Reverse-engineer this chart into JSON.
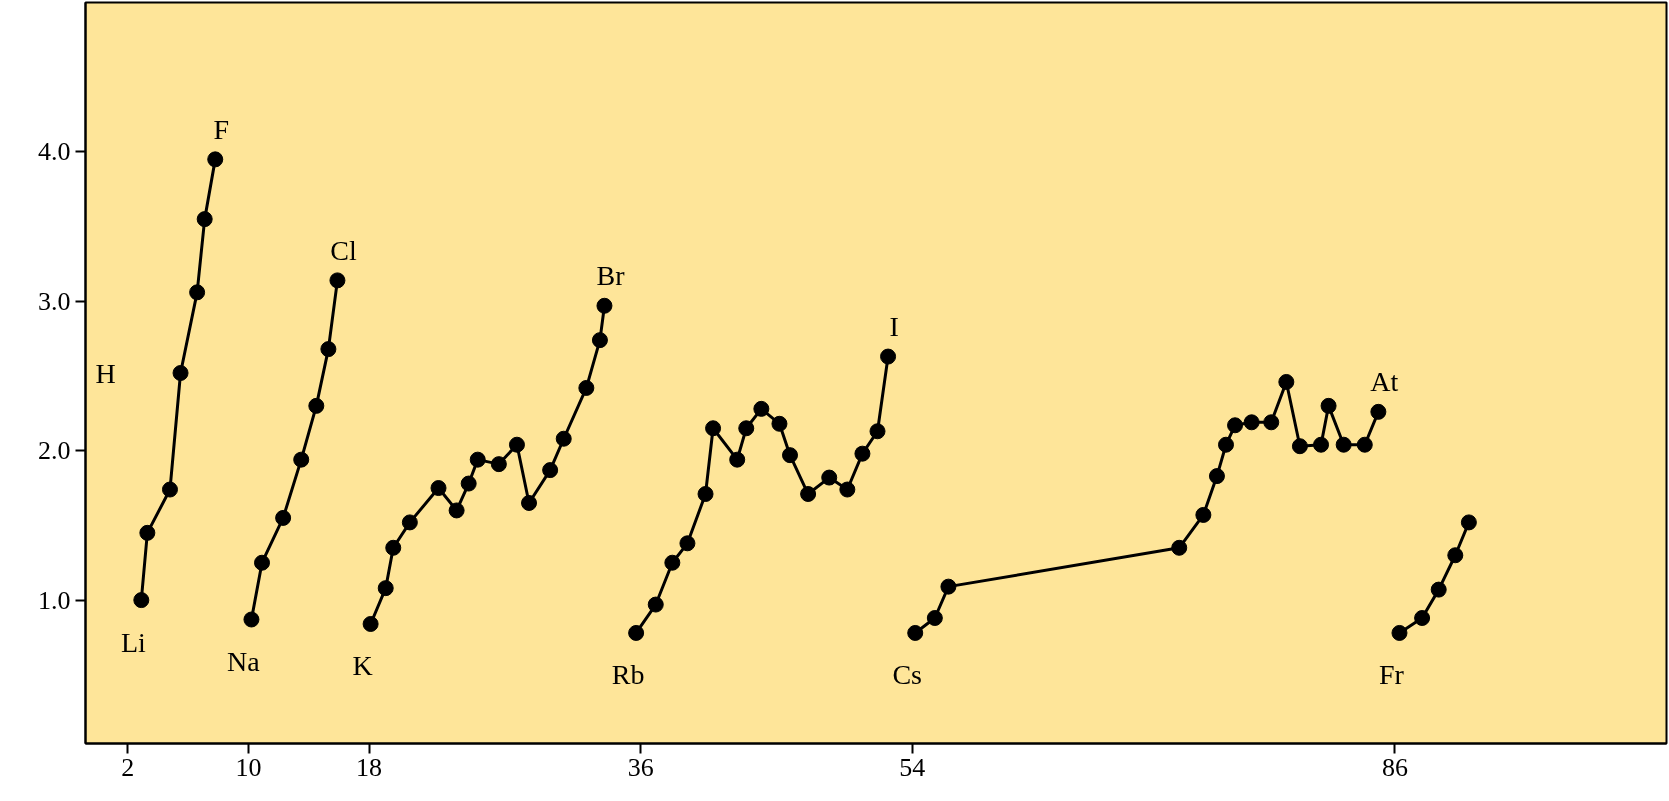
{
  "chart_data": {
    "type": "line",
    "marker": "circle",
    "line_style": "solid",
    "grid": false,
    "xlim": [
      -0.8,
      104
    ],
    "ylim": [
      0.04,
      5.0
    ],
    "xticks": [
      2,
      10,
      18,
      36,
      54,
      86
    ],
    "yticks": [
      {
        "value": 1,
        "label": "1.0"
      },
      {
        "value": 2,
        "label": "2.0"
      },
      {
        "value": 3,
        "label": "3.0"
      },
      {
        "value": 4,
        "label": "4.0"
      }
    ],
    "series": [
      {
        "color": "#000000",
        "x": [
          2.9,
          3.3,
          4.8,
          5.5,
          6.6,
          7.1,
          7.8
        ],
        "values": [
          1.0,
          1.45,
          1.74,
          2.52,
          3.06,
          3.55,
          3.95
        ]
      },
      {
        "color": "#000000",
        "x": [
          10.2,
          10.9,
          12.3,
          13.5,
          14.5,
          15.3,
          15.9
        ],
        "values": [
          0.87,
          1.25,
          1.55,
          1.94,
          2.3,
          2.68,
          3.14
        ]
      },
      {
        "color": "#000000",
        "x": [
          18.1,
          19.1,
          19.6,
          20.7,
          22.6,
          23.8,
          24.6,
          25.2,
          26.6,
          27.8,
          28.6,
          30.0,
          30.9,
          32.4,
          33.3,
          33.6
        ],
        "values": [
          0.84,
          1.08,
          1.35,
          1.52,
          1.75,
          1.6,
          1.78,
          1.94,
          1.91,
          2.04,
          1.65,
          1.87,
          2.08,
          2.42,
          2.74,
          2.97
        ]
      },
      {
        "color": "#000000",
        "x": [
          35.7,
          37.0,
          38.1,
          39.1,
          40.3,
          40.8,
          42.4,
          43.0,
          44.0,
          45.2,
          45.9,
          47.1,
          48.5,
          49.7,
          50.7,
          51.7,
          52.4
        ],
        "values": [
          0.78,
          0.97,
          1.25,
          1.38,
          1.71,
          2.15,
          1.94,
          2.15,
          2.28,
          2.18,
          1.97,
          1.71,
          1.82,
          1.74,
          1.98,
          2.13,
          2.63
        ]
      },
      {
        "color": "#000000",
        "x": [
          54.2,
          55.5,
          56.4,
          71.7,
          73.3,
          74.2,
          74.8,
          75.4,
          76.5,
          77.8,
          78.8,
          79.7,
          81.1,
          81.6,
          82.6,
          84.0,
          84.9
        ],
        "values": [
          0.78,
          0.88,
          1.09,
          1.35,
          1.57,
          1.83,
          2.04,
          2.17,
          2.19,
          2.19,
          2.46,
          2.03,
          2.04,
          2.3,
          2.04,
          2.04,
          2.26
        ]
      },
      {
        "color": "#000000",
        "x": [
          86.3,
          87.8,
          88.9,
          90.0,
          90.9
        ],
        "values": [
          0.78,
          0.88,
          1.07,
          1.3,
          1.52
        ]
      }
    ],
    "annotations": [
      "H",
      {
        "text": "Li",
        "x": 2.9,
        "y": 1.0
      },
      {
        "text": "F",
        "x": 7.8,
        "y": 3.95
      },
      {
        "text": "Na",
        "x": 10.2,
        "y": 0.87
      },
      {
        "text": "Cl",
        "x": 15.9,
        "y": 3.14
      },
      {
        "text": "K",
        "x": 18.1,
        "y": 0.84
      },
      {
        "text": "Br",
        "x": 33.6,
        "y": 2.97
      },
      {
        "text": "Rb",
        "x": 35.7,
        "y": 0.78
      },
      {
        "text": "I",
        "x": 52.4,
        "y": 2.63
      },
      {
        "text": "Cs",
        "x": 54.2,
        "y": 0.78
      },
      {
        "text": "At",
        "x": 84.9,
        "y": 2.26
      },
      {
        "text": "Fr",
        "x": 86.3,
        "y": 0.78
      }
    ]
  }
}
